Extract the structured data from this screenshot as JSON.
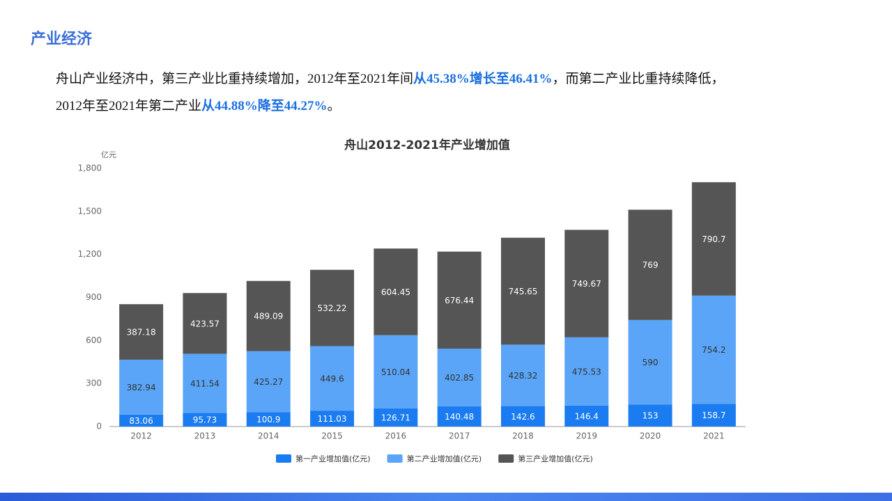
{
  "header": {
    "title": "产业经济"
  },
  "paragraph": {
    "lines": [
      [
        "舟山产业经济中，第三产业比重持续增加，2012年至2021年间",
        "从45.38%增长至46.41%",
        "，而第二产业比重持续降低，"
      ],
      [
        "2012年至2021年第二产业",
        "从44.88%降至44.27%",
        "。"
      ]
    ]
  },
  "chart_data": {
    "type": "stacked_bar",
    "title": "舟山2012-2021年产业增加值",
    "y_label": "亿元",
    "categories": [
      "2012",
      "2013",
      "2014",
      "2015",
      "2016",
      "2017",
      "2018",
      "2019",
      "2020",
      "2021"
    ],
    "series": [
      {
        "name": "第一产业增加值(亿元)",
        "color": "#1a7cf0",
        "values": [
          83.06,
          95.73,
          100.9,
          111.03,
          126.71,
          140.48,
          142.6,
          146.4,
          153,
          158.7
        ]
      },
      {
        "name": "第二产业增加值(亿元)",
        "color": "#5aa5f7",
        "values": [
          382.94,
          411.54,
          425.27,
          449.6,
          510.04,
          402.85,
          428.32,
          475.53,
          590,
          754.2
        ]
      },
      {
        "name": "第三产业增加值(亿元)",
        "color": "#555555",
        "values": [
          387.18,
          423.57,
          489.09,
          532.22,
          604.45,
          676.44,
          745.65,
          749.67,
          769,
          790.7
        ]
      }
    ],
    "ylim": [
      0,
      1800
    ],
    "yticks": [
      0,
      300,
      600,
      900,
      {
        "value": 1200,
        "label": "1,200"
      },
      {
        "value": 1500,
        "label": "1,500"
      },
      {
        "value": 1800,
        "label": "1,800"
      }
    ],
    "legend": "bottom"
  }
}
